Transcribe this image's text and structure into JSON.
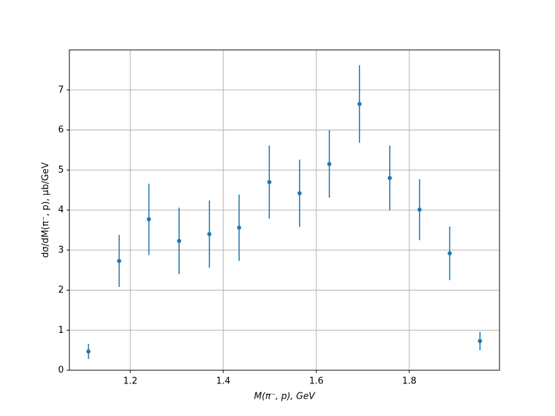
{
  "chart_data": {
    "type": "scatter",
    "x_label": "M(π⁻, p), GeV",
    "y_label": "dσ/dM(π⁻, p), μb/GeV",
    "xlim": [
      1.069,
      1.994
    ],
    "ylim": [
      0,
      8
    ],
    "xticks": [
      1.2,
      1.4,
      1.6,
      1.8
    ],
    "yticks": [
      0,
      1,
      2,
      3,
      4,
      5,
      6,
      7
    ],
    "grid": true,
    "series": [
      {
        "color": "#1f77b4",
        "x": [
          1.11,
          1.176,
          1.24,
          1.305,
          1.37,
          1.434,
          1.499,
          1.564,
          1.628,
          1.693,
          1.758,
          1.822,
          1.887,
          1.952
        ],
        "values": [
          0.47,
          2.73,
          3.77,
          3.23,
          3.4,
          3.56,
          4.7,
          4.42,
          5.15,
          6.65,
          4.8,
          4.01,
          2.92,
          0.73
        ],
        "errors": [
          0.19,
          0.65,
          0.89,
          0.83,
          0.84,
          0.83,
          0.91,
          0.84,
          0.84,
          0.97,
          0.81,
          0.76,
          0.67,
          0.23
        ]
      }
    ]
  }
}
